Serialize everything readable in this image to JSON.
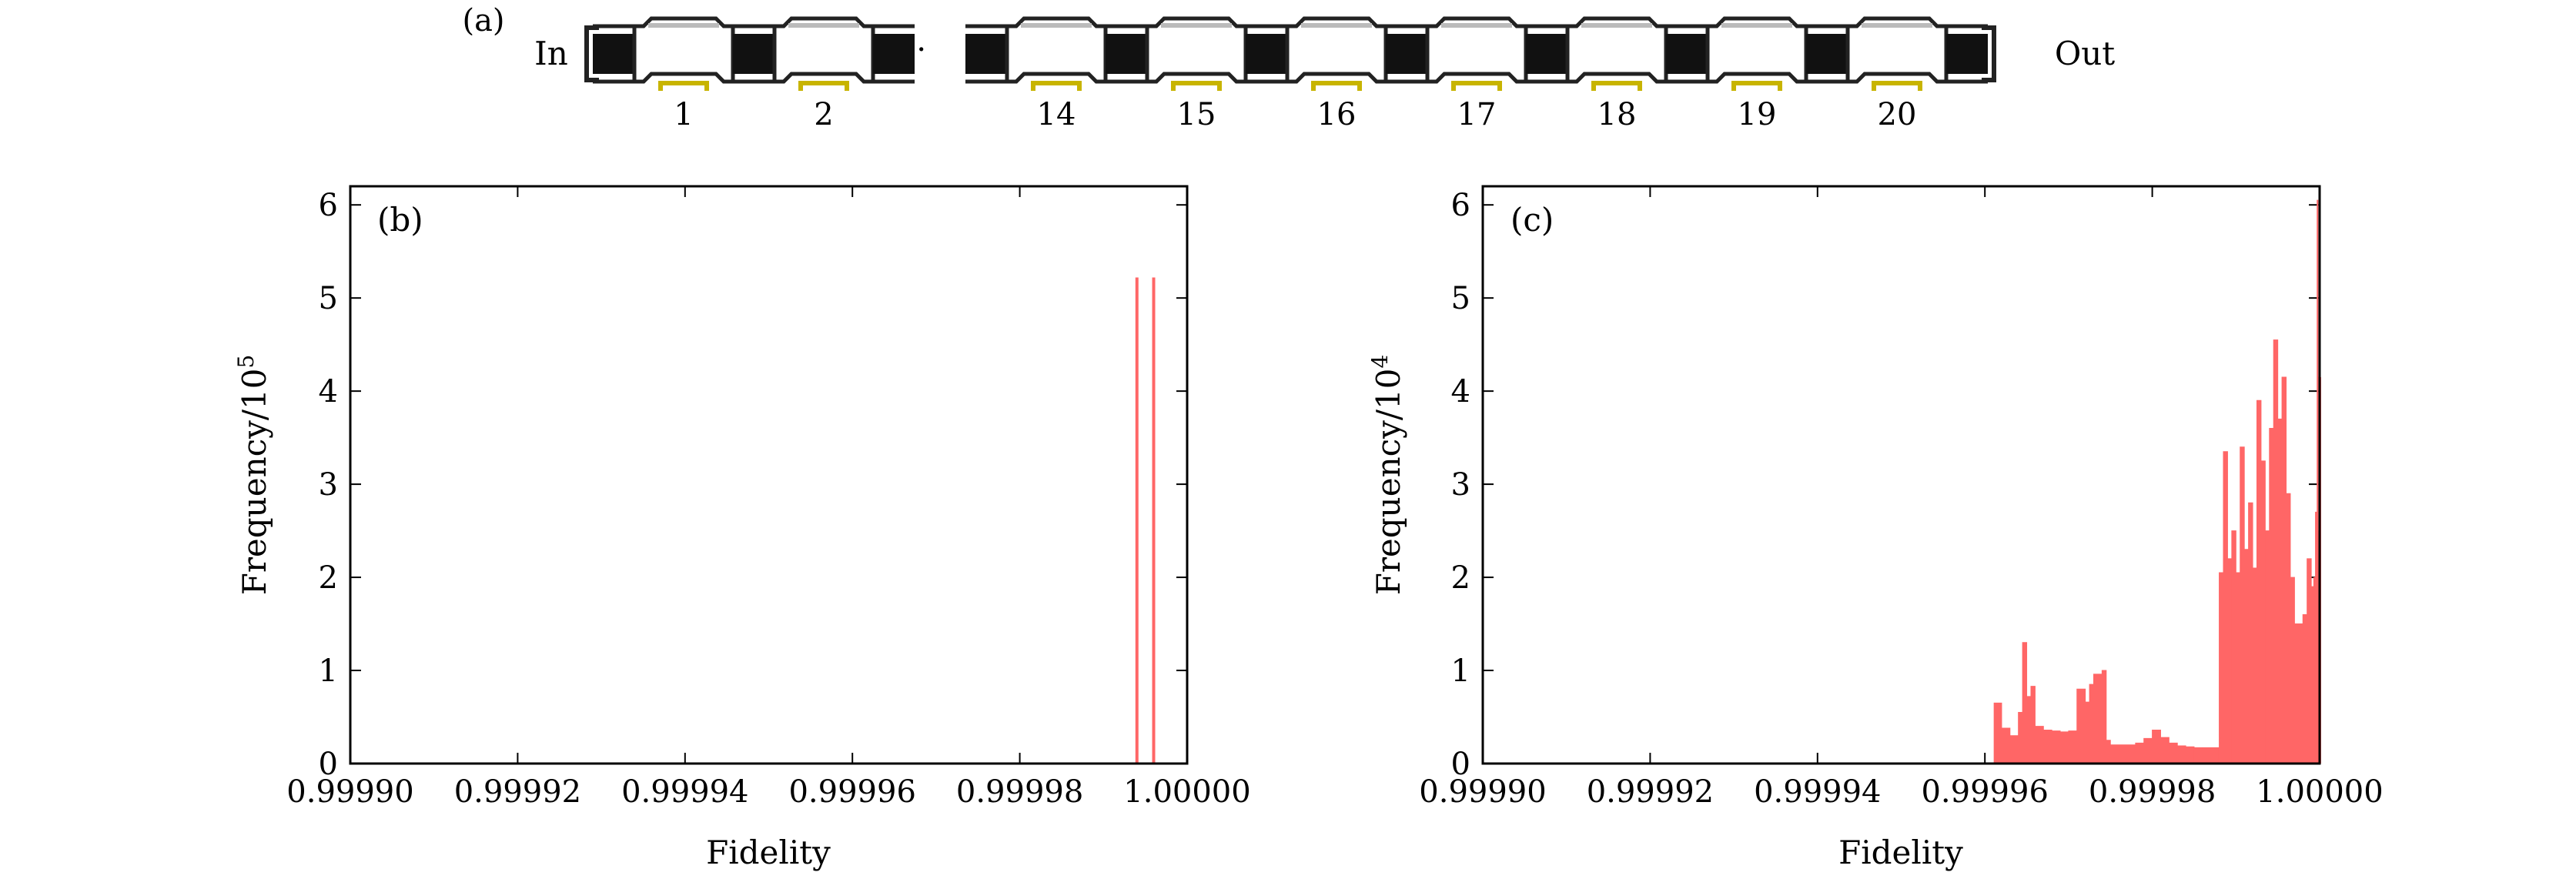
{
  "panel_a": {
    "label": "(a)",
    "input_label": "In",
    "output_label": "Out",
    "ellipsis": "···",
    "numbers_before_gap": [
      "1",
      "2"
    ],
    "numbers_after_gap": [
      "14",
      "15",
      "16",
      "17",
      "18",
      "19",
      "20"
    ],
    "colors": {
      "connector": "#111111",
      "cell": "#ffffff",
      "cell_border": "#222222",
      "contact": "#c8b400"
    }
  },
  "chart_data": [
    {
      "type": "bar",
      "panel_label": "(b)",
      "xlabel": "Fidelity",
      "ylabel": "Frequency/10",
      "ylabel_exponent": "5",
      "xlim": [
        0.9999,
        1.0
      ],
      "ylim": [
        0,
        6.2
      ],
      "xticks": [
        "0.99990",
        "0.99992",
        "0.99994",
        "0.99996",
        "0.99998",
        "1.00000"
      ],
      "yticks": [
        "0",
        "1",
        "2",
        "3",
        "4",
        "5",
        "6"
      ],
      "color": "#ff6666",
      "bars": [
        {
          "x": 0.999994,
          "value": 5.22
        },
        {
          "x": 0.999996,
          "value": 5.22
        }
      ]
    },
    {
      "type": "area",
      "panel_label": "(c)",
      "xlabel": "Fidelity",
      "ylabel": "Frequency/10",
      "ylabel_exponent": "4",
      "xlim": [
        0.9999,
        1.0
      ],
      "ylim": [
        0,
        6.2
      ],
      "xticks": [
        "0.99990",
        "0.99992",
        "0.99994",
        "0.99996",
        "0.99998",
        "1.00000"
      ],
      "yticks": [
        "0",
        "1",
        "2",
        "3",
        "4",
        "5",
        "6"
      ],
      "color": "#ff6666",
      "x": [
        0.999961,
        0.9999611,
        0.999962,
        0.999963,
        0.999964,
        0.9999645,
        0.999965,
        0.9999655,
        0.999966,
        0.999967,
        0.999968,
        0.999969,
        0.99997,
        0.999971,
        0.999972,
        0.9999725,
        0.999973,
        0.999974,
        0.9999745,
        0.999975,
        0.999976,
        0.999977,
        0.999978,
        0.999979,
        0.99998,
        0.999981,
        0.999982,
        0.999983,
        0.999984,
        0.999985,
        0.999986,
        0.999987,
        0.9999879,
        0.999988,
        0.9999885,
        0.999989,
        0.9999895,
        0.99999,
        0.9999905,
        0.999991,
        0.9999915,
        0.999992,
        0.9999925,
        0.999993,
        0.9999935,
        0.999994,
        0.9999945,
        0.999995,
        0.9999955,
        0.999996,
        0.9999965,
        0.999997,
        0.9999975,
        0.999998,
        0.9999985,
        0.999999,
        0.9999993,
        0.9999995,
        0.9999997,
        0.9999998,
        0.9999999,
        1.0
      ],
      "values": [
        0,
        0.65,
        0.38,
        0.3,
        0.55,
        1.3,
        0.72,
        0.83,
        0.4,
        0.36,
        0.35,
        0.34,
        0.35,
        0.8,
        0.66,
        0.85,
        0.96,
        1.0,
        0.25,
        0.2,
        0.2,
        0.2,
        0.22,
        0.27,
        0.36,
        0.28,
        0.22,
        0.19,
        0.18,
        0.17,
        0.17,
        0.17,
        0.17,
        2.05,
        3.35,
        2.2,
        2.5,
        2.05,
        3.4,
        2.3,
        2.8,
        2.1,
        3.9,
        3.25,
        2.5,
        3.6,
        4.55,
        3.7,
        4.15,
        2.9,
        2.0,
        1.5,
        1.5,
        1.6,
        2.2,
        1.9,
        2.0,
        2.7,
        6.05,
        2.5,
        4.15,
        4.15
      ]
    }
  ]
}
